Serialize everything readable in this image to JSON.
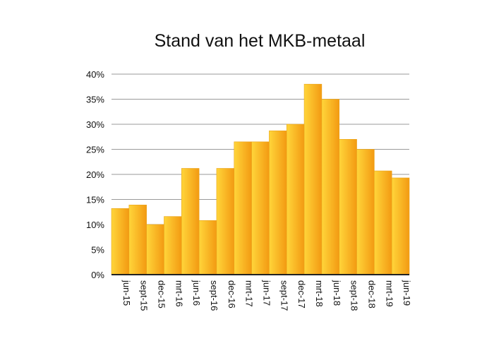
{
  "chart_data": {
    "type": "bar",
    "title": "Stand van het MKB-metaal",
    "xlabel": "",
    "ylabel": "",
    "categories": [
      "jun-15",
      "sept-15",
      "dec-15",
      "mrt-16",
      "jun-16",
      "sept-16",
      "dec-16",
      "mrt-17",
      "jun-17",
      "sept-17",
      "dec-17",
      "mrt-18",
      "jun-18",
      "sept-18",
      "dec-18",
      "mrt-19",
      "jun-19"
    ],
    "values": [
      13.2,
      13.9,
      10.0,
      11.6,
      21.2,
      10.8,
      21.2,
      26.5,
      26.5,
      28.7,
      30.0,
      38.0,
      35.0,
      27.0,
      25.0,
      20.7,
      19.3
    ],
    "ylim": [
      0,
      40
    ],
    "yticks": [
      "0%",
      "5%",
      "10%",
      "15%",
      "20%",
      "25%",
      "30%",
      "35%",
      "40%"
    ],
    "grid": true,
    "legend": "none",
    "colors": {
      "bar_light": "#ffd53a",
      "bar_dark": "#f39a12",
      "grid": "#9a9a9a",
      "axis": "#222222"
    }
  }
}
